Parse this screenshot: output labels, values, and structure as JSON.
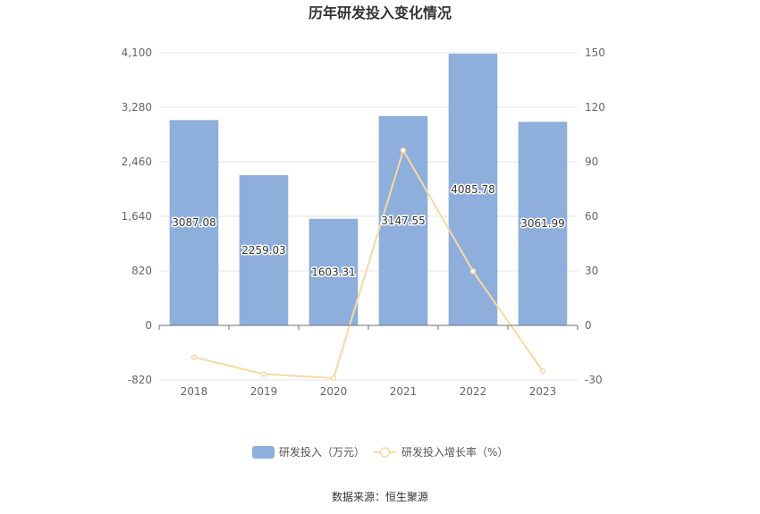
{
  "chart_data": {
    "type": "bar",
    "title": "历年研发投入变化情况",
    "categories": [
      "2018",
      "2019",
      "2020",
      "2021",
      "2022",
      "2023"
    ],
    "series": [
      {
        "name": "研发投入（万元）",
        "type": "bar",
        "axis": "left",
        "color": "#8eaedc",
        "values": [
          3087.08,
          2259.03,
          1603.31,
          3147.55,
          4085.78,
          3061.99
        ],
        "labels": [
          "3087.08",
          "2259.03",
          "1603.31",
          "3147.55",
          "4085.78",
          "3061.99"
        ]
      },
      {
        "name": "研发投入增长率（%）",
        "type": "line",
        "axis": "right",
        "color": "#f8d9a3",
        "values": [
          -17.5,
          -26.8,
          -29.0,
          96.3,
          29.8,
          -25.1
        ]
      }
    ],
    "y_left": {
      "min": -820,
      "max": 4100,
      "ticks": [
        "-820",
        "0",
        "820",
        "1,640",
        "2,460",
        "3,280",
        "4,100"
      ],
      "tick_values": [
        -820,
        0,
        820,
        1640,
        2460,
        3280,
        4100
      ]
    },
    "y_right": {
      "min": -30,
      "max": 150,
      "ticks": [
        "-30",
        "0",
        "30",
        "60",
        "90",
        "120",
        "150"
      ],
      "tick_values": [
        -30,
        0,
        30,
        60,
        90,
        120,
        150
      ]
    },
    "grid": true,
    "legend_position": "bottom",
    "source": "数据来源：恒生聚源"
  }
}
